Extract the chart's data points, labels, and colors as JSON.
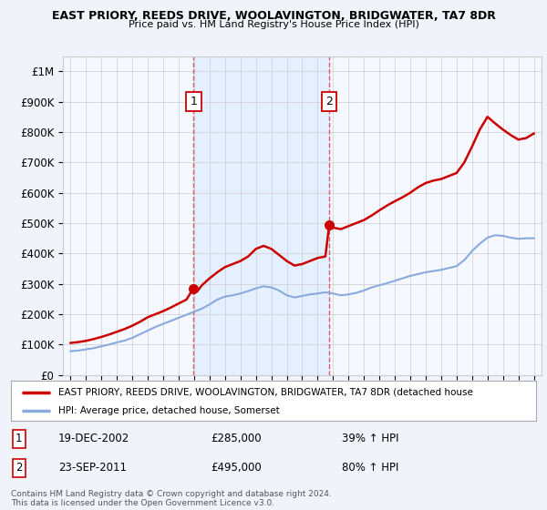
{
  "title1": "EAST PRIORY, REEDS DRIVE, WOOLAVINGTON, BRIDGWATER, TA7 8DR",
  "title2": "Price paid vs. HM Land Registry's House Price Index (HPI)",
  "ylim": [
    0,
    1050000
  ],
  "yticks": [
    0,
    100000,
    200000,
    300000,
    400000,
    500000,
    600000,
    700000,
    800000,
    900000,
    1000000
  ],
  "ytick_labels": [
    "£0",
    "£100K",
    "£200K",
    "£300K",
    "£400K",
    "£500K",
    "£600K",
    "£700K",
    "£800K",
    "£900K",
    "£1M"
  ],
  "sale1_year": 2002.96,
  "sale1_price": 285000,
  "sale2_year": 2011.75,
  "sale2_price": 495000,
  "red_line_color": "#cc0000",
  "blue_line_color": "#88aadd",
  "vline_color": "#dd4444",
  "shade_color": "#ddeeff",
  "legend_label1": "EAST PRIORY, REEDS DRIVE, WOOLAVINGTON, BRIDGWATER, TA7 8DR (detached house",
  "legend_label2": "HPI: Average price, detached house, Somerset",
  "annotation1_date": "19-DEC-2002",
  "annotation1_price": "£285,000",
  "annotation1_hpi": "39% ↑ HPI",
  "annotation2_date": "23-SEP-2011",
  "annotation2_price": "£495,000",
  "annotation2_hpi": "80% ↑ HPI",
  "footer": "Contains HM Land Registry data © Crown copyright and database right 2024.\nThis data is licensed under the Open Government Licence v3.0.",
  "background_color": "#f0f4fa",
  "plot_bg_color": "#f5f8ff"
}
